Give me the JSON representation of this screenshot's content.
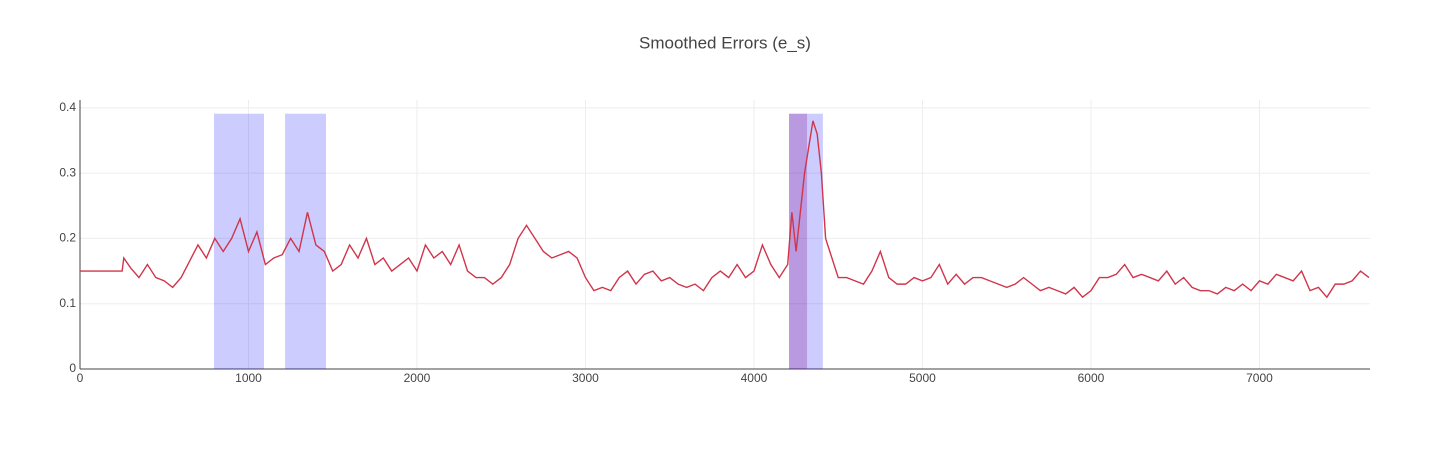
{
  "chart_data": {
    "type": "line",
    "title": "Smoothed Errors (e_s)",
    "x": [
      0,
      250,
      260,
      300,
      350,
      400,
      450,
      500,
      550,
      600,
      650,
      700,
      750,
      800,
      850,
      900,
      950,
      1000,
      1050,
      1100,
      1150,
      1200,
      1250,
      1300,
      1350,
      1400,
      1450,
      1500,
      1550,
      1600,
      1650,
      1700,
      1750,
      1800,
      1850,
      1900,
      1950,
      2000,
      2050,
      2100,
      2150,
      2200,
      2250,
      2300,
      2350,
      2400,
      2450,
      2500,
      2550,
      2600,
      2650,
      2700,
      2750,
      2800,
      2850,
      2900,
      2950,
      3000,
      3050,
      3100,
      3150,
      3200,
      3250,
      3300,
      3350,
      3400,
      3450,
      3500,
      3550,
      3600,
      3650,
      3700,
      3750,
      3800,
      3850,
      3900,
      3950,
      4000,
      4050,
      4100,
      4150,
      4200,
      4225,
      4250,
      4300,
      4350,
      4375,
      4400,
      4425,
      4450,
      4500,
      4550,
      4600,
      4650,
      4700,
      4750,
      4800,
      4850,
      4900,
      4950,
      5000,
      5050,
      5100,
      5150,
      5200,
      5250,
      5300,
      5350,
      5400,
      5450,
      5500,
      5550,
      5600,
      5650,
      5700,
      5750,
      5800,
      5850,
      5900,
      5950,
      6000,
      6050,
      6100,
      6150,
      6200,
      6250,
      6300,
      6350,
      6400,
      6450,
      6500,
      6550,
      6600,
      6650,
      6700,
      6750,
      6800,
      6850,
      6900,
      6950,
      7000,
      7050,
      7100,
      7150,
      7200,
      7250,
      7300,
      7350,
      7400,
      7450,
      7500,
      7550,
      7600,
      7650
    ],
    "series": [
      {
        "color": "#d0354b",
        "values": [
          0.15,
          0.15,
          0.17,
          0.155,
          0.14,
          0.16,
          0.14,
          0.135,
          0.125,
          0.14,
          0.165,
          0.19,
          0.17,
          0.2,
          0.18,
          0.2,
          0.23,
          0.18,
          0.21,
          0.16,
          0.17,
          0.175,
          0.2,
          0.18,
          0.24,
          0.19,
          0.18,
          0.15,
          0.16,
          0.19,
          0.17,
          0.2,
          0.16,
          0.17,
          0.15,
          0.16,
          0.17,
          0.15,
          0.19,
          0.17,
          0.18,
          0.16,
          0.19,
          0.15,
          0.14,
          0.14,
          0.13,
          0.14,
          0.16,
          0.2,
          0.22,
          0.2,
          0.18,
          0.17,
          0.175,
          0.18,
          0.17,
          0.14,
          0.12,
          0.125,
          0.12,
          0.14,
          0.15,
          0.13,
          0.145,
          0.15,
          0.135,
          0.14,
          0.13,
          0.125,
          0.13,
          0.12,
          0.14,
          0.15,
          0.14,
          0.16,
          0.14,
          0.15,
          0.19,
          0.16,
          0.14,
          0.16,
          0.24,
          0.18,
          0.3,
          0.38,
          0.36,
          0.3,
          0.2,
          0.18,
          0.14,
          0.14,
          0.135,
          0.13,
          0.15,
          0.18,
          0.14,
          0.13,
          0.13,
          0.14,
          0.135,
          0.14,
          0.16,
          0.13,
          0.145,
          0.13,
          0.14,
          0.14,
          0.135,
          0.13,
          0.125,
          0.13,
          0.14,
          0.13,
          0.12,
          0.125,
          0.12,
          0.115,
          0.125,
          0.11,
          0.12,
          0.14,
          0.14,
          0.145,
          0.16,
          0.14,
          0.145,
          0.14,
          0.135,
          0.15,
          0.13,
          0.14,
          0.125,
          0.12,
          0.12,
          0.115,
          0.125,
          0.12,
          0.13,
          0.12,
          0.135,
          0.13,
          0.145,
          0.14,
          0.135,
          0.15,
          0.12,
          0.125,
          0.11,
          0.13,
          0.13,
          0.135,
          0.15,
          0.14
        ]
      }
    ],
    "regions": [
      {
        "x0": 795,
        "x1": 1092,
        "y0": 0,
        "y1": 0.391,
        "color": "rgba(0,0,255,0.2)"
      },
      {
        "x0": 1217,
        "x1": 1460,
        "y0": 0,
        "y1": 0.391,
        "color": "rgba(0,0,255,0.2)"
      },
      {
        "x0": 4208,
        "x1": 4409,
        "y0": 0,
        "y1": 0.391,
        "color": "rgba(0,0,255,0.2)"
      },
      {
        "x0": 4208,
        "x1": 4315,
        "y0": 0,
        "y1": 0.391,
        "color": "rgba(128,0,128,0.25)"
      }
    ],
    "xlim": [
      0,
      7656
    ],
    "xticks": [
      0,
      1000,
      2000,
      3000,
      4000,
      5000,
      6000,
      7000
    ],
    "ylim": [
      0,
      0.412
    ],
    "yticks": [
      0,
      0.1,
      0.2,
      0.3,
      0.4
    ],
    "grid": true
  }
}
